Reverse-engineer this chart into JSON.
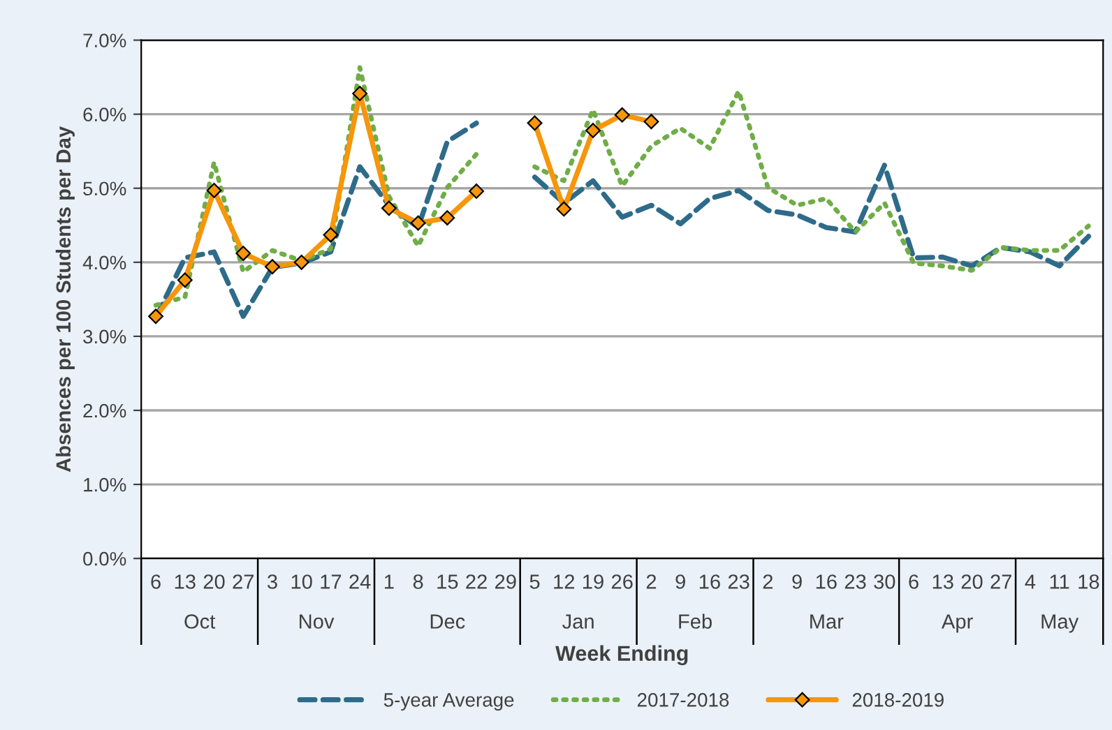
{
  "chart_data": {
    "type": "line",
    "xlabel": "Week Ending",
    "ylabel": "Absences per 100 Students per Day",
    "categories": [
      "6",
      "13",
      "20",
      "27",
      "3",
      "10",
      "17",
      "24",
      "1",
      "8",
      "15",
      "22",
      "29",
      "5",
      "12",
      "19",
      "26",
      "2",
      "9",
      "16",
      "23",
      "2",
      "9",
      "16",
      "23",
      "30",
      "6",
      "13",
      "20",
      "27",
      "4",
      "11",
      "18"
    ],
    "annotations": [
      "Oct",
      "Nov",
      "Dec",
      "Jan",
      "Feb",
      "Mar",
      "Apr",
      "May"
    ],
    "series": [
      {
        "name": "5-year Average",
        "color": "#2e6b8a",
        "line_style": "dashed",
        "marker": "none",
        "values": [
          3.25,
          4.06,
          4.14,
          3.27,
          3.93,
          3.99,
          4.14,
          5.29,
          4.77,
          4.47,
          5.63,
          5.88,
          null,
          5.15,
          4.8,
          5.1,
          4.61,
          4.77,
          4.52,
          4.86,
          4.97,
          4.7,
          4.64,
          4.47,
          4.41,
          5.31,
          4.06,
          4.07,
          3.95,
          4.2,
          4.14,
          3.95,
          4.35
        ]
      },
      {
        "name": "2017-2018",
        "color": "#70ad47",
        "line_style": "dotted",
        "marker": "none",
        "values": [
          3.42,
          3.53,
          5.35,
          3.87,
          4.16,
          4.02,
          4.18,
          6.63,
          4.89,
          4.22,
          5.01,
          5.46,
          null,
          5.29,
          5.1,
          6.06,
          5.03,
          5.57,
          5.81,
          5.54,
          6.31,
          5.01,
          4.77,
          4.86,
          4.41,
          4.8,
          3.99,
          3.95,
          3.89,
          4.2,
          4.16,
          4.16,
          4.49
        ]
      },
      {
        "name": "2018-2019",
        "color": "#f7960a",
        "line_style": "solid",
        "marker": "diamond",
        "values": [
          3.27,
          3.76,
          4.97,
          4.12,
          3.94,
          4.0,
          4.37,
          6.28,
          4.73,
          4.53,
          4.6,
          4.96,
          null,
          5.88,
          4.72,
          5.78,
          5.99,
          5.9,
          null,
          null,
          null,
          null,
          null,
          null,
          null,
          null,
          null,
          null,
          null,
          null,
          null,
          null,
          null
        ]
      }
    ],
    "ylim": [
      0,
      7
    ],
    "yticks": [
      {
        "value": 0,
        "label": "0.0%"
      },
      {
        "value": 1,
        "label": "1.0%"
      },
      {
        "value": 2,
        "label": "2.0%"
      },
      {
        "value": 3,
        "label": "3.0%"
      },
      {
        "value": 4,
        "label": "4.0%"
      },
      {
        "value": 5,
        "label": "5.0%"
      },
      {
        "value": 6,
        "label": "6.0%"
      },
      {
        "value": 7,
        "label": "7.0%"
      }
    ],
    "grid": "y",
    "legend": "bottom"
  }
}
